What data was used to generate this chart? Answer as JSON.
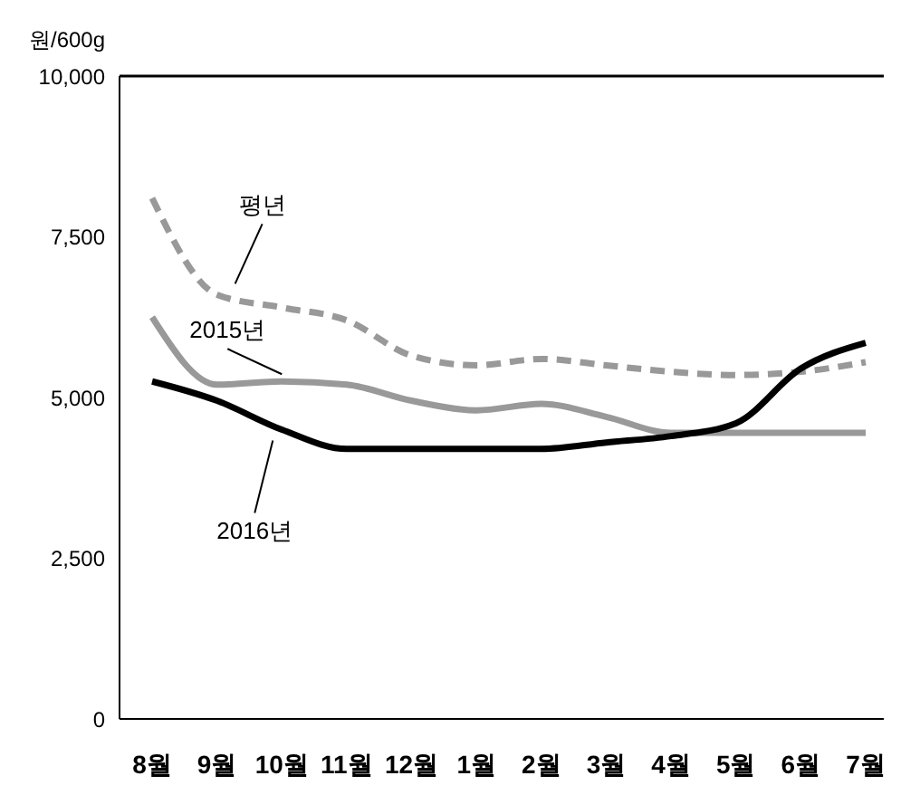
{
  "chart_data": {
    "type": "line",
    "ylabel": "원/600g",
    "categories": [
      "8월",
      "9월",
      "10월",
      "11월",
      "12월",
      "1월",
      "2월",
      "3월",
      "4월",
      "5월",
      "6월",
      "7월"
    ],
    "ylim": [
      0,
      10000
    ],
    "yticks": [
      {
        "value": 0,
        "label": "0"
      },
      {
        "value": 2500,
        "label": "2,500"
      },
      {
        "value": 5000,
        "label": "5,000"
      },
      {
        "value": 7500,
        "label": "7,500"
      },
      {
        "value": 10000,
        "label": "10,000"
      }
    ],
    "grid": false,
    "legend": false,
    "marker": "none",
    "series": [
      {
        "name": "평년",
        "color": "#999999",
        "line_style": "dashed",
        "values": [
          8100,
          6600,
          6400,
          6200,
          5650,
          5500,
          5600,
          5500,
          5400,
          5350,
          5400,
          5550
        ]
      },
      {
        "name": "2015년",
        "color": "#999999",
        "line_style": "solid",
        "values": [
          6250,
          5200,
          5250,
          5200,
          4950,
          4800,
          4900,
          4700,
          4450,
          4450,
          4450,
          4450
        ]
      },
      {
        "name": "2016년",
        "color": "#000000",
        "line_style": "solid",
        "values": [
          5250,
          4950,
          4500,
          4200,
          4200,
          4200,
          4200,
          4300,
          4400,
          4600,
          5450,
          5850
        ]
      }
    ]
  }
}
